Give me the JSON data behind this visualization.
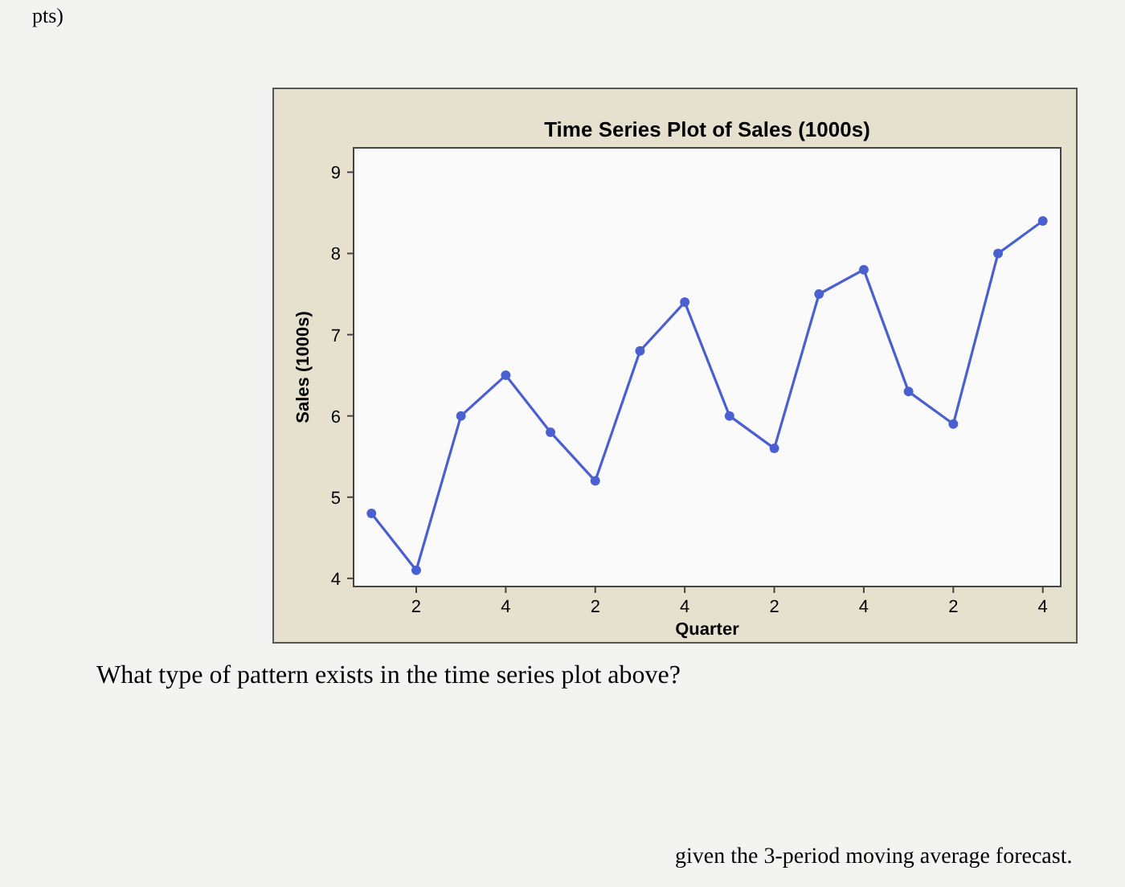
{
  "chart_data": {
    "type": "line",
    "title": "Time Series Plot of Sales (1000s)",
    "xlabel": "Quarter",
    "ylabel": "Sales (1000s)",
    "categories": [
      null,
      "2",
      null,
      "4",
      null,
      "2",
      null,
      "4",
      null,
      "2",
      null,
      "4",
      null,
      "2",
      null,
      "4"
    ],
    "series": [
      {
        "color": "#4a5fd0",
        "values": [
          4.8,
          4.1,
          6.0,
          6.5,
          5.8,
          5.2,
          6.8,
          7.4,
          6.0,
          5.6,
          7.5,
          7.8,
          6.3,
          5.9,
          8.0,
          8.4
        ]
      }
    ],
    "marker": "circle",
    "line_style": "solid",
    "ylim": [
      3.9,
      9.3
    ],
    "yticks": [
      4,
      5,
      6,
      7,
      8,
      9
    ],
    "annotations": [
      "pts)",
      "What type of pattern exists in the time series plot above?",
      "given the 3-period moving average forecast."
    ]
  }
}
